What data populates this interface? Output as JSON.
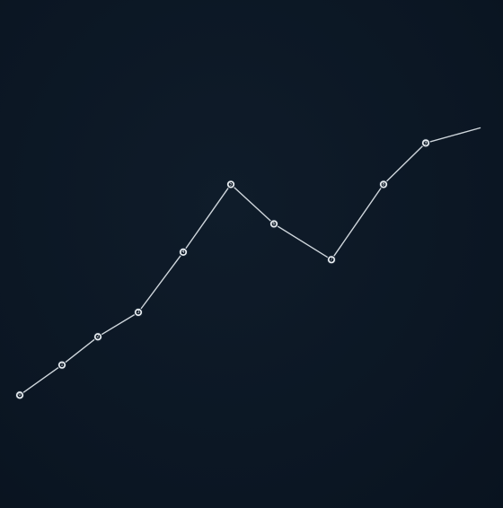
{
  "chart_data": {
    "type": "line",
    "x": [
      1,
      2,
      3,
      4,
      5,
      6,
      7,
      8,
      9,
      10,
      11
    ],
    "series": [
      {
        "values": [
          1.0,
          1.8,
          2.55,
          3.2,
          4.8,
          6.6,
          5.55,
          4.6,
          6.6,
          7.7,
          8.1
        ]
      }
    ],
    "xlim": [
      0.5,
      11.5
    ],
    "ylim": [
      -2.0,
      11.5
    ],
    "grid": false,
    "legend": "none",
    "point_glyphs": [
      "0",
      "1",
      "2",
      "3",
      "4",
      "5",
      "6",
      "7",
      "8",
      "9",
      "10"
    ],
    "colors": {
      "background": "#0c1724",
      "line": "#cfd6dc",
      "marker": "#e9eef2"
    }
  }
}
